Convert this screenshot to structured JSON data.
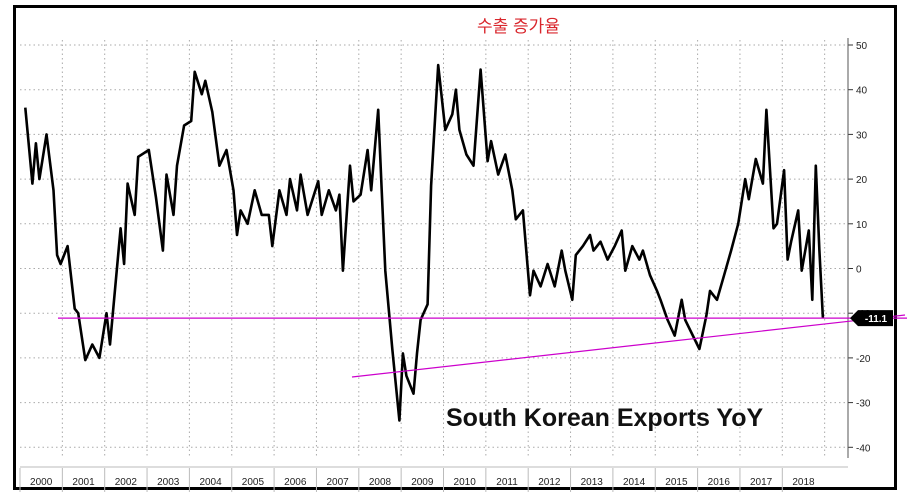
{
  "chart_data": {
    "type": "line",
    "title": "수출 증가율",
    "annotation": "South Korean Exports YoY",
    "xlabel": "",
    "ylabel": "",
    "ylim": [
      -40,
      50
    ],
    "yticks": [
      50,
      40,
      30,
      20,
      10,
      0,
      -10,
      -20,
      -30,
      -40
    ],
    "y_axis_side": "right",
    "x_tick_labels": [
      "2000",
      "2001",
      "2002",
      "2003",
      "2004",
      "2005",
      "2006",
      "2007",
      "2008",
      "2009",
      "2010",
      "2011",
      "2012",
      "2013",
      "2014",
      "2015",
      "2016",
      "2017",
      "2018"
    ],
    "grid": true,
    "last_value_label": "-11.1",
    "reference_line": -11.1,
    "colors": {
      "series": "#000000",
      "annotation_lines": "#cc00cc",
      "title": "#d9262c",
      "last_value_badge": "#000000"
    },
    "series": [
      {
        "x": [
          "2000-02",
          "2000-04",
          "2000-05",
          "2000-06",
          "2000-08",
          "2000-10",
          "2000-11",
          "2000-12",
          "2001-02",
          "2001-04",
          "2001-05",
          "2001-07",
          "2001-09",
          "2001-11",
          "2002-01",
          "2002-02",
          "2002-05",
          "2002-06",
          "2002-07",
          "2002-09",
          "2002-10",
          "2003-01",
          "2003-03",
          "2003-05",
          "2003-06",
          "2003-08",
          "2003-09",
          "2003-11",
          "2004-01",
          "2004-02",
          "2004-04",
          "2004-05",
          "2004-07",
          "2004-09",
          "2004-11",
          "2005-01",
          "2005-02",
          "2005-03",
          "2005-05",
          "2005-07",
          "2005-09",
          "2005-11",
          "2005-12",
          "2006-02",
          "2006-04",
          "2006-05",
          "2006-07",
          "2006-08",
          "2006-10",
          "2007-01",
          "2007-02",
          "2007-04",
          "2007-06",
          "2007-07",
          "2007-08",
          "2007-10",
          "2007-11",
          "2008-01",
          "2008-03",
          "2008-04",
          "2008-06",
          "2008-07",
          "2008-08",
          "2008-10",
          "2008-12",
          "2009-01",
          "2009-02",
          "2009-04",
          "2009-05",
          "2009-06",
          "2009-08",
          "2009-09",
          "2009-11",
          "2010-01",
          "2010-03",
          "2010-04",
          "2010-05",
          "2010-07",
          "2010-09",
          "2010-11",
          "2011-01",
          "2011-02",
          "2011-04",
          "2011-06",
          "2011-08",
          "2011-09",
          "2011-11",
          "2012-01",
          "2012-02",
          "2012-04",
          "2012-06",
          "2012-08",
          "2012-10",
          "2012-11",
          "2013-01",
          "2013-02",
          "2013-04",
          "2013-06",
          "2013-07",
          "2013-09",
          "2013-11",
          "2014-01",
          "2014-03",
          "2014-04",
          "2014-06",
          "2014-08",
          "2014-09",
          "2014-11",
          "2015-01",
          "2015-02",
          "2015-04",
          "2015-06",
          "2015-08",
          "2015-09",
          "2016-01",
          "2016-03",
          "2016-04",
          "2016-06",
          "2016-08",
          "2016-10",
          "2016-12",
          "2017-02",
          "2017-03",
          "2017-05",
          "2017-07",
          "2017-08",
          "2017-10",
          "2017-11",
          "2018-01",
          "2018-02",
          "2018-03",
          "2018-05",
          "2018-06",
          "2018-08",
          "2018-09",
          "2018-10",
          "2018-11",
          "2018-12"
        ],
        "values": [
          36,
          19,
          28,
          20,
          30,
          17.5,
          3,
          1,
          5,
          -9,
          -10,
          -20.5,
          -17,
          -20,
          -10,
          -17,
          9,
          1,
          19,
          12,
          25,
          26.5,
          16,
          4,
          21,
          12,
          23,
          32,
          33,
          44,
          39,
          42,
          35,
          23,
          26.5,
          17.5,
          7.5,
          13,
          10,
          17.5,
          12,
          12,
          5,
          17.5,
          12,
          20,
          13,
          21,
          12,
          19.5,
          12,
          17.5,
          13,
          16.5,
          -0.5,
          23,
          15,
          16.5,
          26.5,
          17.5,
          35.5,
          17.5,
          -0.5,
          -18,
          -34,
          -19,
          -24,
          -28,
          -19,
          -11.5,
          -8,
          18.5,
          45.5,
          31,
          34.5,
          40,
          31,
          25.5,
          23,
          44.5,
          24,
          28.5,
          21,
          25.5,
          17.5,
          11,
          13,
          -6,
          -0.5,
          -4,
          1,
          -4,
          4,
          -0.5,
          -7,
          3,
          5,
          7.5,
          4,
          6,
          2,
          5,
          8.5,
          -0.5,
          5,
          2,
          4,
          -1.5,
          -5,
          -7,
          -11.5,
          -15,
          -7,
          -11.5,
          -18,
          -10.5,
          -5,
          -7,
          -1.5,
          4,
          10,
          20,
          15.5,
          24.5,
          19,
          35.5,
          9,
          10,
          22,
          2,
          6,
          13,
          -0.5,
          8.5,
          -7,
          23,
          4,
          -11.1
        ]
      }
    ]
  }
}
